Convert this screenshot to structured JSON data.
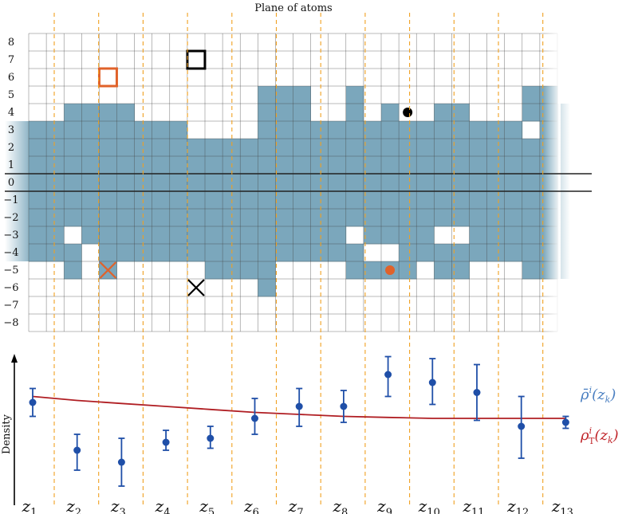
{
  "title": "Plane of atoms",
  "y_axis_label": "Density",
  "row_labels": [
    "8",
    "7",
    "6",
    "5",
    "4",
    "3",
    "2",
    "1",
    "0",
    "−1",
    "−2",
    "−3",
    "−4",
    "−5",
    "−6",
    "−7",
    "−8"
  ],
  "z_labels": [
    {
      "base": "z",
      "sub": "1"
    },
    {
      "base": "z",
      "sub": "2"
    },
    {
      "base": "z",
      "sub": "3"
    },
    {
      "base": "z",
      "sub": "4"
    },
    {
      "base": "z",
      "sub": "5"
    },
    {
      "base": "z",
      "sub": "6"
    },
    {
      "base": "z",
      "sub": "7"
    },
    {
      "base": "z",
      "sub": "8"
    },
    {
      "base": "z",
      "sub": "9"
    },
    {
      "base": "z",
      "sub": "10"
    },
    {
      "base": "z",
      "sub": "11"
    },
    {
      "base": "z",
      "sub": "12"
    },
    {
      "base": "z",
      "sub": "13"
    }
  ],
  "legend": [
    {
      "base": "ρ̄",
      "sup": "i",
      "args": "(z",
      "argsub": "k",
      "close": ")",
      "color": "#4a7fc1"
    },
    {
      "base": "ρ",
      "sup": "i",
      "sub": "T",
      "args": "(z",
      "argsub": "k",
      "close": ")",
      "color": "#c0262b"
    }
  ],
  "colors": {
    "fill": "#7ba7bc",
    "grid": "#444444",
    "divider": "#f0a020",
    "points": "#1f4fa8",
    "trend": "#b01e23",
    "orange_marker": "#e0622a",
    "black_marker": "#000000"
  },
  "chart_data": {
    "type": "scatter",
    "x": [
      "z1",
      "z2",
      "z3",
      "z4",
      "z5",
      "z6",
      "z7",
      "z8",
      "z9",
      "z10",
      "z11",
      "z12",
      "z13"
    ],
    "series": [
      {
        "values": [
          0.86,
          0.62,
          0.56,
          0.66,
          0.68,
          0.78,
          0.84,
          0.84,
          1.0,
          0.96,
          0.91,
          0.74,
          0.76
        ],
        "err_low": [
          0.07,
          0.1,
          0.12,
          0.04,
          0.05,
          0.08,
          0.1,
          0.08,
          0.11,
          0.11,
          0.14,
          0.16,
          0.03
        ],
        "err_high": [
          0.07,
          0.08,
          0.12,
          0.06,
          0.06,
          0.1,
          0.09,
          0.08,
          0.09,
          0.12,
          0.14,
          0.15,
          0.03
        ]
      },
      {
        "type": "line",
        "values": [
          0.89,
          0.87,
          0.855,
          0.84,
          0.825,
          0.81,
          0.8,
          0.79,
          0.785,
          0.78,
          0.78,
          0.78,
          0.78
        ]
      }
    ],
    "ylim": [
      0.4,
      1.12
    ]
  }
}
